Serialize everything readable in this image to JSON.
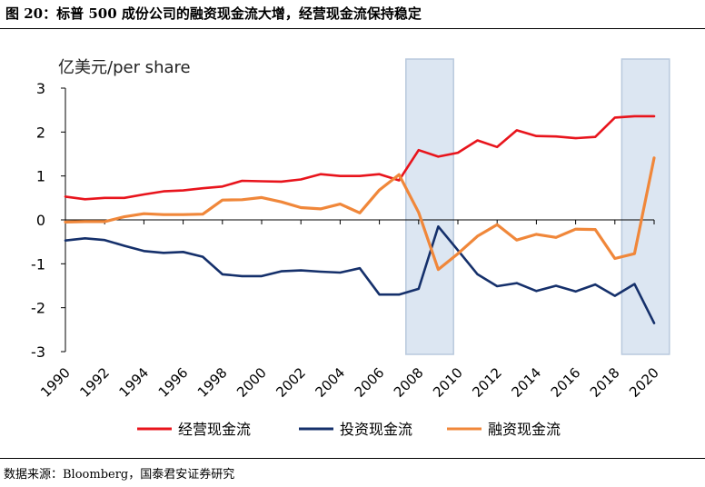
{
  "figure": {
    "title": "图 20：标普 500 成份公司的融资现金流大增，经营现金流保持稳定",
    "source": "数据来源：Bloomberg，国泰君安证券研究"
  },
  "chart_data": {
    "type": "line",
    "unit_label": "亿美元/per share",
    "x": [
      1990,
      1991,
      1992,
      1993,
      1994,
      1995,
      1996,
      1997,
      1998,
      1999,
      2000,
      2001,
      2002,
      2003,
      2004,
      2005,
      2006,
      2007,
      2008,
      2009,
      2010,
      2011,
      2012,
      2013,
      2014,
      2015,
      2016,
      2017,
      2018,
      2019,
      2020
    ],
    "x_tick_labels": [
      "1990",
      "1992",
      "1994",
      "1996",
      "1998",
      "2000",
      "2002",
      "2004",
      "2006",
      "2008",
      "2010",
      "2012",
      "2014",
      "2016",
      "2018",
      "2020"
    ],
    "y_tick_labels": [
      "3",
      "2",
      "1",
      "0",
      "-1",
      "-2",
      "-3"
    ],
    "ylim": [
      -3,
      3
    ],
    "shaded_ranges": [
      [
        2008,
        2009.5
      ],
      [
        2019,
        2020.5
      ]
    ],
    "shade_color": "#dce6f2",
    "legend_position": "bottom",
    "series": [
      {
        "name": "经营现金流",
        "color": "#e8141c",
        "values": [
          0.53,
          0.47,
          0.5,
          0.5,
          0.58,
          0.65,
          0.67,
          0.72,
          0.76,
          0.89,
          0.88,
          0.87,
          0.92,
          1.04,
          1.0,
          1.0,
          1.04,
          0.9,
          1.59,
          1.44,
          1.53,
          1.81,
          1.66,
          2.04,
          1.91,
          1.9,
          1.86,
          1.89,
          2.33,
          2.36,
          2.36
        ]
      },
      {
        "name": "投资现金流",
        "color": "#15306b",
        "values": [
          -0.47,
          -0.42,
          -0.46,
          -0.59,
          -0.71,
          -0.75,
          -0.73,
          -0.84,
          -1.24,
          -1.28,
          -1.28,
          -1.17,
          -1.15,
          -1.18,
          -1.2,
          -1.1,
          -1.7,
          -1.7,
          -1.57,
          -0.15,
          -0.69,
          -1.24,
          -1.51,
          -1.44,
          -1.62,
          -1.5,
          -1.63,
          -1.47,
          -1.73,
          -1.46,
          -2.35
        ]
      },
      {
        "name": "融资现金流",
        "color": "#f0873a",
        "values": [
          -0.05,
          -0.04,
          -0.04,
          0.07,
          0.14,
          0.12,
          0.12,
          0.13,
          0.45,
          0.46,
          0.51,
          0.41,
          0.28,
          0.25,
          0.36,
          0.16,
          0.68,
          1.03,
          0.17,
          -1.13,
          -0.77,
          -0.37,
          -0.11,
          -0.46,
          -0.33,
          -0.4,
          -0.21,
          -0.22,
          -0.88,
          -0.77,
          1.41
        ]
      }
    ]
  }
}
